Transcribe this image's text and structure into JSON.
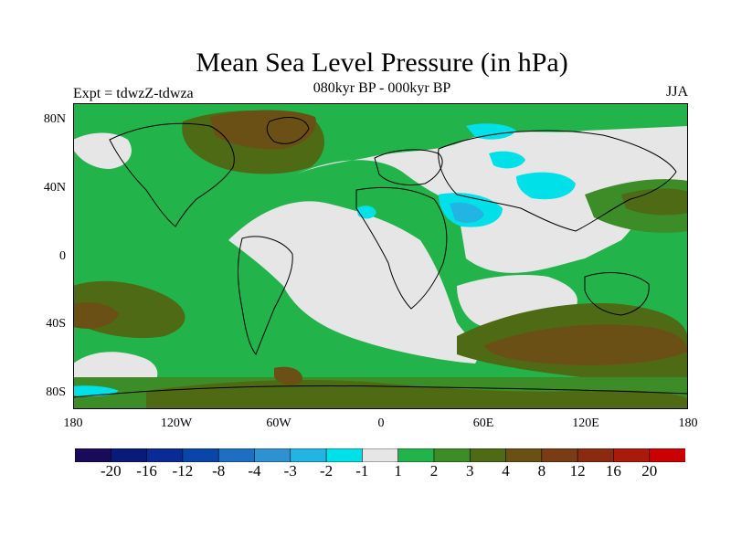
{
  "title": "Mean Sea Level Pressure (in hPa)",
  "subtitle": "080kyr BP - 000kyr BP",
  "left_label": "Expt = tdwzZ-tdwza",
  "right_label": "JJA",
  "axes": {
    "y_ticks": [
      "80N",
      "40N",
      "0",
      "40S",
      "80S"
    ],
    "x_ticks": [
      "180",
      "120W",
      "60W",
      "0",
      "60E",
      "120E",
      "180"
    ]
  },
  "colorbar": {
    "colors": [
      "#1a0a5a",
      "#0a1a78",
      "#0a2a96",
      "#0a46aa",
      "#1e6ec4",
      "#2e92d2",
      "#22b4e2",
      "#00e0e8",
      "#e6e6e6",
      "#22b44a",
      "#3c8c28",
      "#4e6a14",
      "#6a5014",
      "#7a3c14",
      "#8a2a10",
      "#aa1a0a",
      "#cc0000"
    ],
    "labels": [
      "-20",
      "-16",
      "-12",
      "-8",
      "-4",
      "-3",
      "-2",
      "-1",
      "1",
      "2",
      "3",
      "4",
      "8",
      "12",
      "16",
      "20"
    ]
  },
  "palette": {
    "ocean_green": "#22b44a",
    "mid_green": "#3c8c28",
    "olive": "#4e6a14",
    "brown": "#6a5014",
    "neutral": "#e6e6e6",
    "cyan": "#00e0e8",
    "blue": "#22b4e2",
    "deep_blue": "#1e6ec4"
  }
}
